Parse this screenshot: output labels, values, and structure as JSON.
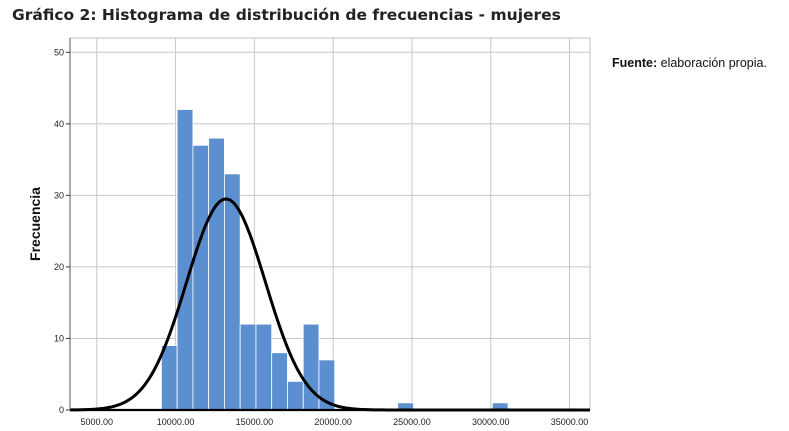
{
  "figure": {
    "title": "Gráfico 2: Histograma de distribución de frecuencias - mujeres",
    "source_label": "Fuente:",
    "source_text": "elaboración propia."
  },
  "chart_data": {
    "type": "bar",
    "ylabel": "Frecuencia",
    "xlabel": "",
    "xlim": [
      3300,
      36300
    ],
    "ylim": [
      0,
      52
    ],
    "y_ticks": [
      0,
      10,
      20,
      30,
      40,
      50
    ],
    "x_ticks": [
      5000,
      10000,
      15000,
      20000,
      25000,
      30000,
      35000
    ],
    "x_tick_labels": [
      "5000.00",
      "10000.00",
      "15000.00",
      "20000.00",
      "25000.00",
      "30000.00",
      "35000.00"
    ],
    "grid": true,
    "bar_color": "#5b8fcf",
    "bins": [
      {
        "x0": 9100,
        "x1": 10100,
        "value": 9
      },
      {
        "x0": 10100,
        "x1": 11100,
        "value": 42
      },
      {
        "x0": 11100,
        "x1": 12100,
        "value": 37
      },
      {
        "x0": 12100,
        "x1": 13100,
        "value": 38
      },
      {
        "x0": 13100,
        "x1": 14100,
        "value": 33
      },
      {
        "x0": 14100,
        "x1": 15100,
        "value": 12
      },
      {
        "x0": 15100,
        "x1": 16100,
        "value": 12
      },
      {
        "x0": 16100,
        "x1": 17100,
        "value": 8
      },
      {
        "x0": 17100,
        "x1": 18100,
        "value": 4
      },
      {
        "x0": 18100,
        "x1": 19100,
        "value": 12
      },
      {
        "x0": 19100,
        "x1": 20100,
        "value": 7
      },
      {
        "x0": 24100,
        "x1": 25100,
        "value": 1
      },
      {
        "x0": 30100,
        "x1": 31100,
        "value": 1
      }
    ],
    "normal_curve": {
      "mean": 13200,
      "sd": 2500,
      "peak": 29.5
    }
  }
}
